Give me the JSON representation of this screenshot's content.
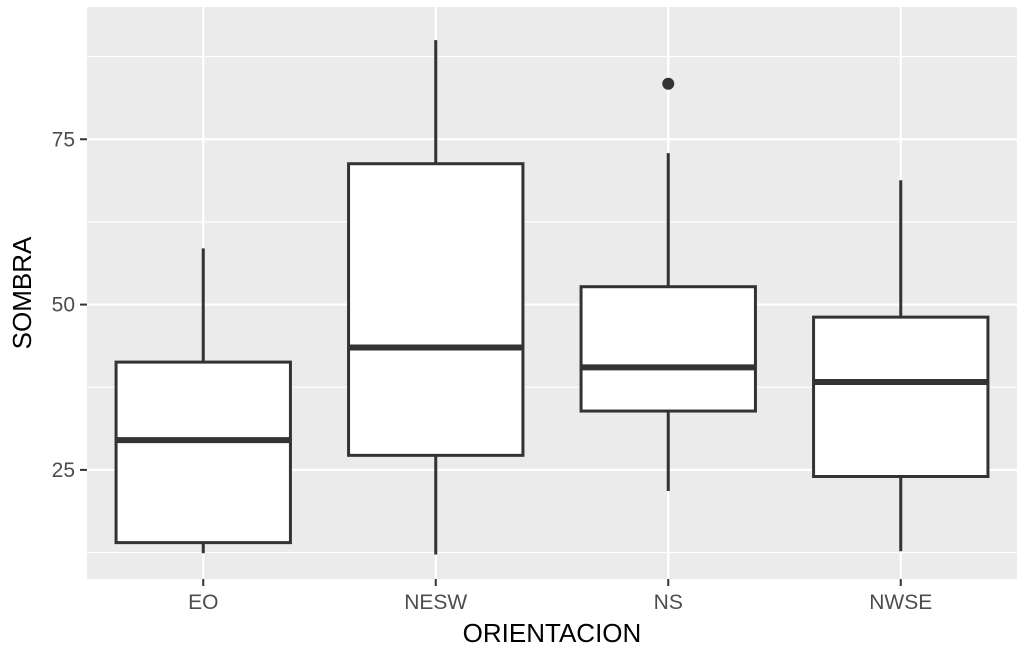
{
  "chart_data": {
    "type": "boxplot",
    "title": "",
    "xlabel": "ORIENTACION",
    "ylabel": "SOMBRA",
    "categories": [
      "EO",
      "NESW",
      "NS",
      "NWSE"
    ],
    "boxes": [
      {
        "category": "EO",
        "whisker_low": 12.4,
        "q1": 14.0,
        "median": 29.5,
        "q3": 41.3,
        "whisker_high": 58.5,
        "outliers": []
      },
      {
        "category": "NESW",
        "whisker_low": 12.2,
        "q1": 27.2,
        "median": 43.5,
        "q3": 71.3,
        "whisker_high": 90.0,
        "outliers": []
      },
      {
        "category": "NS",
        "whisker_low": 21.8,
        "q1": 33.9,
        "median": 40.5,
        "q3": 52.7,
        "whisker_high": 72.9,
        "outliers": [
          83.4
        ]
      },
      {
        "category": "NWSE",
        "whisker_low": 12.7,
        "q1": 24.0,
        "median": 38.3,
        "q3": 48.1,
        "whisker_high": 68.8,
        "outliers": []
      }
    ],
    "ylim": [
      8.5,
      95.0
    ],
    "yticks": [
      25,
      50,
      75
    ],
    "yminor": [
      12.5,
      37.5,
      62.5,
      87.5
    ],
    "grid": true,
    "colors": {
      "panel": "#ebebeb",
      "grid": "#ffffff",
      "box_fill": "#ffffff",
      "box_stroke": "#333333",
      "text": "#4d4d4d",
      "title": "#000000"
    }
  }
}
